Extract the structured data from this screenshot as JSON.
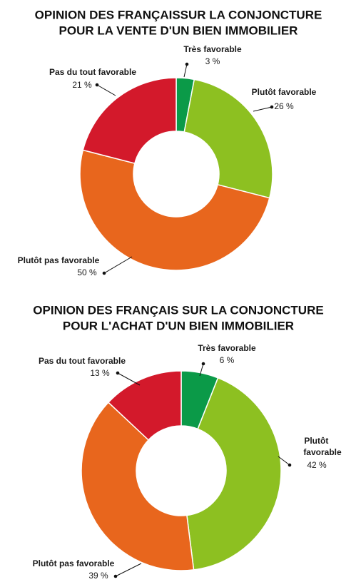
{
  "chart_data": [
    {
      "type": "pie",
      "title": [
        "OPINION DES FRANÇAISSUR LA CONJONCTURE",
        "POUR LA VENTE D'UN BIEN IMMOBILIER"
      ],
      "categories": [
        "Très favorable",
        "Plutôt favorable",
        "Plutôt pas favorable",
        "Pas du tout favorable"
      ],
      "values": [
        3,
        26,
        50,
        21
      ],
      "value_labels": [
        "3 %",
        "26 %",
        "50 %",
        "21 %"
      ],
      "colors": [
        "#0b9a48",
        "#8dc021",
        "#e8661d",
        "#d3192b"
      ]
    },
    {
      "type": "pie",
      "title": [
        "OPINION DES FRANÇAIS SUR LA CONJONCTURE",
        "POUR L'ACHAT D'UN BIEN IMMOBILIER"
      ],
      "categories": [
        "Très favorable",
        "Plutôt favorable",
        "Plutôt pas favorable",
        "Pas du tout favorable"
      ],
      "values": [
        6,
        42,
        39,
        13
      ],
      "value_labels": [
        "6 %",
        "42 %",
        "39 %",
        "13 %"
      ],
      "colors": [
        "#0b9a48",
        "#8dc021",
        "#e8661d",
        "#d3192b"
      ]
    }
  ]
}
